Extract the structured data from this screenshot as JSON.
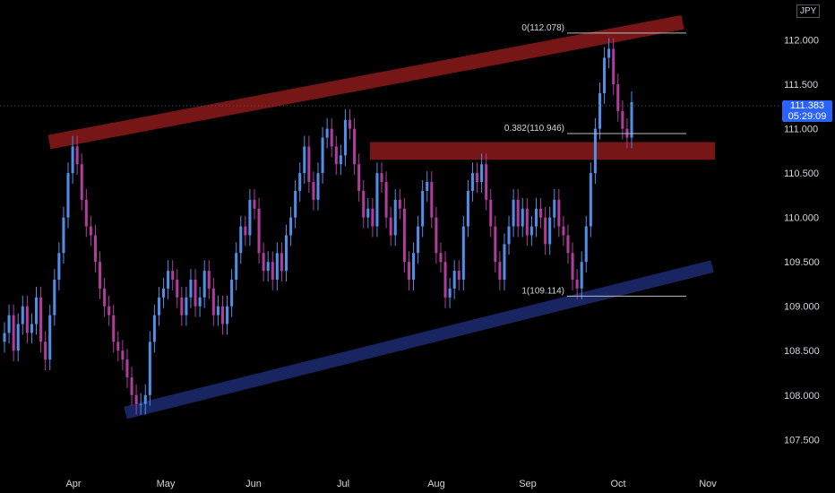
{
  "chart_data": {
    "type": "candlestick",
    "symbol": "JPY",
    "last_price": "111.383",
    "countdown": "05:29:09",
    "ylim": [
      107.2,
      112.45
    ],
    "y_ticks": [
      "112.000",
      "111.500",
      "111.000",
      "110.500",
      "110.000",
      "109.500",
      "109.000",
      "108.500",
      "108.000",
      "107.500"
    ],
    "y_tick_values": [
      112.0,
      111.5,
      111.0,
      110.5,
      110.0,
      109.5,
      109.0,
      108.5,
      108.0,
      107.5
    ],
    "x_ticks": [
      "Apr",
      "May",
      "Jun",
      "Jul",
      "Aug",
      "Sep",
      "Oct",
      "Nov"
    ],
    "fib_levels": [
      {
        "label": "0(112.078)",
        "value": 112.078
      },
      {
        "label": "0.382(110.946)",
        "value": 110.946
      },
      {
        "label": "1(109.114)",
        "value": 109.114
      }
    ],
    "resistance_zone": {
      "from": 110.65,
      "to": 110.85,
      "color": "#8b1a1a"
    },
    "upper_channel": {
      "start": 110.85,
      "end": 112.2,
      "color": "#8b1a1a"
    },
    "lower_channel": {
      "start": 107.8,
      "end": 109.45,
      "color": "#1b2a6b"
    },
    "candle_up_color": "#4f8fe8",
    "candle_down_color": "#b03c9c",
    "closes": [
      108.7,
      108.9,
      108.5,
      108.8,
      109.0,
      108.7,
      108.8,
      109.1,
      108.6,
      108.4,
      108.9,
      109.3,
      109.6,
      110.0,
      110.5,
      110.8,
      110.6,
      110.2,
      109.9,
      109.8,
      109.5,
      109.2,
      109.0,
      108.9,
      108.6,
      108.5,
      108.4,
      108.2,
      108.0,
      107.9,
      107.9,
      108.0,
      108.6,
      108.9,
      109.1,
      109.2,
      109.4,
      109.3,
      109.1,
      108.9,
      109.1,
      109.3,
      109.0,
      109.1,
      109.4,
      109.2,
      108.9,
      109.0,
      108.8,
      109.0,
      109.3,
      109.6,
      109.9,
      109.8,
      110.2,
      110.1,
      109.6,
      109.4,
      109.5,
      109.3,
      109.6,
      109.4,
      109.8,
      110.0,
      110.3,
      110.5,
      110.8,
      110.4,
      110.2,
      110.5,
      110.9,
      111.0,
      110.8,
      110.6,
      110.7,
      111.1,
      111.0,
      110.6,
      110.3,
      110.0,
      110.1,
      109.9,
      110.5,
      110.4,
      110.0,
      109.8,
      110.2,
      110.1,
      109.5,
      109.3,
      109.6,
      109.9,
      110.3,
      110.4,
      110.0,
      109.6,
      109.5,
      109.1,
      109.2,
      109.4,
      109.3,
      109.9,
      110.3,
      110.5,
      110.4,
      110.6,
      110.2,
      109.9,
      109.5,
      109.3,
      109.7,
      109.9,
      110.2,
      109.9,
      110.1,
      109.8,
      109.9,
      110.1,
      110.0,
      109.7,
      110.0,
      110.2,
      109.9,
      109.8,
      109.6,
      109.3,
      109.2,
      109.5,
      109.9,
      110.5,
      111.0,
      111.4,
      111.8,
      111.9,
      111.5,
      111.2,
      111.0,
      110.9,
      111.3
    ]
  }
}
